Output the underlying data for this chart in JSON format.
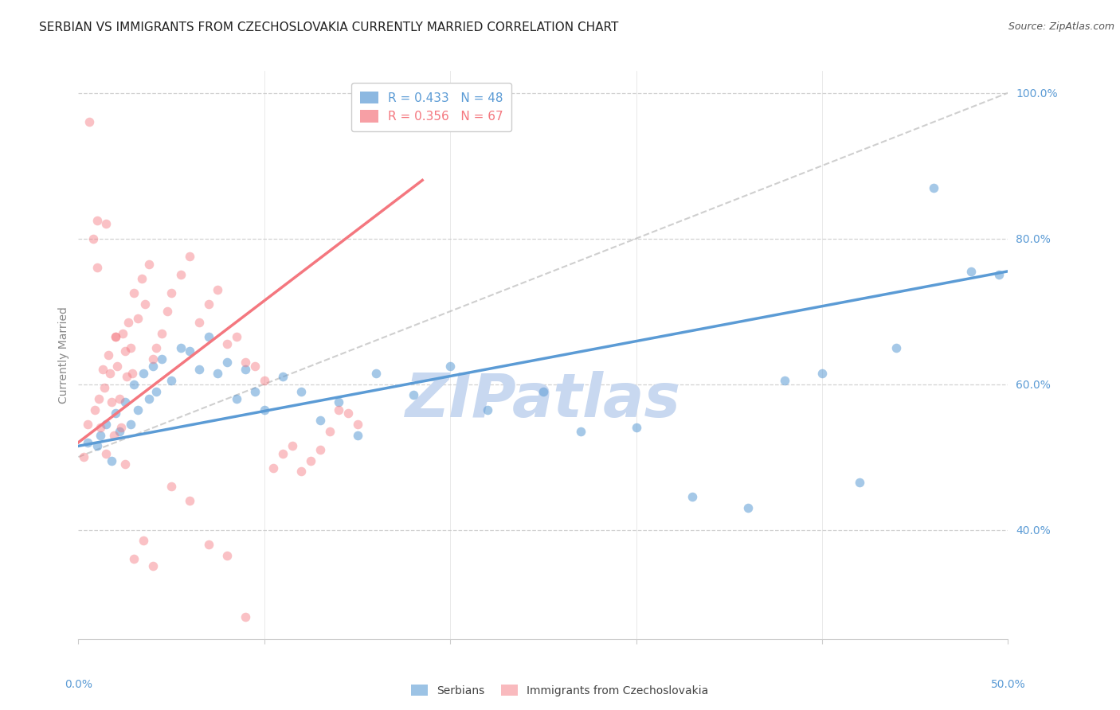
{
  "title": "SERBIAN VS IMMIGRANTS FROM CZECHOSLOVAKIA CURRENTLY MARRIED CORRELATION CHART",
  "source": "Source: ZipAtlas.com",
  "ylabel": "Currently Married",
  "watermark": "ZIPatlas",
  "legend_entries": [
    {
      "label": "R = 0.433   N = 48",
      "color": "#5b9bd5"
    },
    {
      "label": "R = 0.356   N = 67",
      "color": "#f4777f"
    }
  ],
  "legend_label_serbians": "Serbians",
  "legend_label_immigrants": "Immigrants from Czechoslovakia",
  "blue_color": "#5b9bd5",
  "pink_color": "#f4777f",
  "blue_scatter_alpha": 0.55,
  "pink_scatter_alpha": 0.45,
  "blue_scatter_size": 70,
  "pink_scatter_size": 70,
  "blue_points_x": [
    0.5,
    1.0,
    1.2,
    1.5,
    1.8,
    2.0,
    2.2,
    2.5,
    2.8,
    3.0,
    3.2,
    3.5,
    3.8,
    4.0,
    4.2,
    4.5,
    5.0,
    5.5,
    6.0,
    6.5,
    7.0,
    7.5,
    8.0,
    8.5,
    9.0,
    9.5,
    10.0,
    11.0,
    12.0,
    13.0,
    14.0,
    15.0,
    16.0,
    18.0,
    20.0,
    22.0,
    25.0,
    27.0,
    30.0,
    33.0,
    36.0,
    38.0,
    40.0,
    42.0,
    44.0,
    46.0,
    48.0,
    49.5
  ],
  "blue_points_y": [
    52.0,
    51.5,
    53.0,
    54.5,
    49.5,
    56.0,
    53.5,
    57.5,
    54.5,
    60.0,
    56.5,
    61.5,
    58.0,
    62.5,
    59.0,
    63.5,
    60.5,
    65.0,
    64.5,
    62.0,
    66.5,
    61.5,
    63.0,
    58.0,
    62.0,
    59.0,
    56.5,
    61.0,
    59.0,
    55.0,
    57.5,
    53.0,
    61.5,
    58.5,
    62.5,
    56.5,
    59.0,
    53.5,
    54.0,
    44.5,
    43.0,
    60.5,
    61.5,
    46.5,
    65.0,
    87.0,
    75.5,
    75.0
  ],
  "pink_points_x": [
    0.3,
    0.5,
    0.8,
    0.9,
    1.0,
    1.1,
    1.2,
    1.3,
    1.4,
    1.5,
    1.6,
    1.7,
    1.8,
    1.9,
    2.0,
    2.1,
    2.2,
    2.3,
    2.4,
    2.5,
    2.6,
    2.7,
    2.8,
    2.9,
    3.0,
    3.2,
    3.4,
    3.6,
    3.8,
    4.0,
    4.2,
    4.5,
    4.8,
    5.0,
    5.5,
    6.0,
    6.5,
    7.0,
    7.5,
    8.0,
    8.5,
    9.0,
    9.5,
    10.0,
    10.5,
    11.0,
    11.5,
    12.0,
    12.5,
    13.0,
    13.5,
    14.0,
    14.5,
    15.0,
    0.6,
    1.0,
    1.5,
    2.0,
    2.5,
    3.0,
    3.5,
    4.0,
    5.0,
    6.0,
    7.0,
    8.0,
    9.0
  ],
  "pink_points_y": [
    50.0,
    54.5,
    80.0,
    56.5,
    76.0,
    58.0,
    54.0,
    62.0,
    59.5,
    50.5,
    64.0,
    61.5,
    57.5,
    53.0,
    66.5,
    62.5,
    58.0,
    54.0,
    67.0,
    64.5,
    61.0,
    68.5,
    65.0,
    61.5,
    72.5,
    69.0,
    74.5,
    71.0,
    76.5,
    63.5,
    65.0,
    67.0,
    70.0,
    72.5,
    75.0,
    77.5,
    68.5,
    71.0,
    73.0,
    65.5,
    66.5,
    63.0,
    62.5,
    60.5,
    48.5,
    50.5,
    51.5,
    48.0,
    49.5,
    51.0,
    53.5,
    56.5,
    56.0,
    54.5,
    96.0,
    82.5,
    82.0,
    66.5,
    49.0,
    36.0,
    38.5,
    35.0,
    46.0,
    44.0,
    38.0,
    36.5,
    28.0
  ],
  "xlim": [
    0.0,
    50.0
  ],
  "ylim": [
    25.0,
    103.0
  ],
  "x_ticks": [
    0.0,
    10.0,
    20.0,
    30.0,
    40.0,
    50.0
  ],
  "y_ticks": [
    40.0,
    60.0,
    80.0,
    100.0
  ],
  "y_tick_labels": [
    "40.0%",
    "60.0%",
    "80.0%",
    "100.0%"
  ],
  "blue_line_x": [
    0.0,
    50.0
  ],
  "blue_line_y": [
    51.5,
    75.5
  ],
  "pink_line_x": [
    0.0,
    18.5
  ],
  "pink_line_y": [
    52.0,
    88.0
  ],
  "diag_line_x": [
    0.0,
    50.0
  ],
  "diag_line_y": [
    50.0,
    100.0
  ],
  "title_fontsize": 11,
  "source_fontsize": 9,
  "tick_fontsize": 10,
  "axis_label_fontsize": 10,
  "legend_fontsize": 11,
  "watermark_fontsize": 55,
  "watermark_color": "#c8d8f0",
  "grid_color": "#cccccc",
  "title_color": "#222222",
  "source_color": "#555555",
  "tick_color": "#5b9bd5",
  "ylabel_color": "#888888"
}
